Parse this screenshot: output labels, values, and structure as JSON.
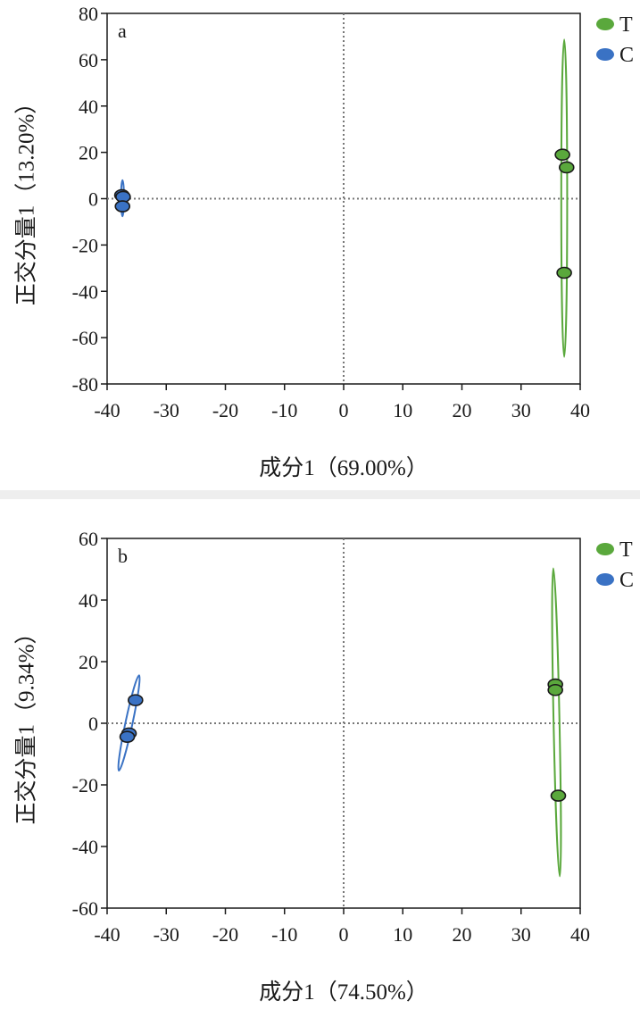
{
  "chart_data": [
    {
      "type": "scatter",
      "panel_label": "a",
      "xlabel": "成分1（69.00%）",
      "ylabel": "正交分量1（13.20%）",
      "xlim": [
        -40,
        40
      ],
      "ylim": [
        -80,
        80
      ],
      "xticks": [
        -40,
        -30,
        -20,
        -10,
        0,
        10,
        20,
        30,
        40
      ],
      "yticks": [
        -80,
        -60,
        -40,
        -20,
        0,
        20,
        40,
        60,
        80
      ],
      "reference_lines": {
        "x": 0,
        "y": 0,
        "style": "dotted"
      },
      "legend": {
        "placement": "right",
        "entries": [
          "T",
          "C"
        ]
      },
      "series": [
        {
          "name": "T",
          "color": "#5aa83c",
          "points": [
            {
              "x": 37,
              "y": 19
            },
            {
              "x": 37.7,
              "y": 13.5
            },
            {
              "x": 37.3,
              "y": -32
            }
          ],
          "ellipse": {
            "cx": 37.3,
            "cy": 0.2,
            "rx": 0.5,
            "ry": 68.5,
            "angle_deg": 0
          }
        },
        {
          "name": "C",
          "color": "#3a72c4",
          "points": [
            {
              "x": -37.5,
              "y": 1.5
            },
            {
              "x": -37.3,
              "y": 0.8
            },
            {
              "x": -37.4,
              "y": -3.3
            }
          ],
          "ellipse": {
            "cx": -37.4,
            "cy": 0.2,
            "rx": 0.25,
            "ry": 7.8,
            "angle_deg": 0
          }
        }
      ]
    },
    {
      "type": "scatter",
      "panel_label": "b",
      "xlabel": "成分1（74.50%）",
      "ylabel": "正交分量1（9.34%）",
      "xlim": [
        -40,
        40
      ],
      "ylim": [
        -60,
        60
      ],
      "xticks": [
        -40,
        -30,
        -20,
        -10,
        0,
        10,
        20,
        30,
        40
      ],
      "yticks": [
        -60,
        -40,
        -20,
        0,
        20,
        40,
        60
      ],
      "reference_lines": {
        "x": 0,
        "y": 0,
        "style": "dotted"
      },
      "legend": {
        "placement": "right",
        "entries": [
          "T",
          "C"
        ]
      },
      "series": [
        {
          "name": "T",
          "color": "#5aa83c",
          "points": [
            {
              "x": 35.8,
              "y": 12.6
            },
            {
              "x": 35.8,
              "y": 10.8
            },
            {
              "x": 36.3,
              "y": -23.5
            }
          ],
          "ellipse": {
            "cx": 36,
            "cy": 0.3,
            "rx": 0.5,
            "ry": 50,
            "angle_deg": -1.2
          }
        },
        {
          "name": "C",
          "color": "#3a72c4",
          "points": [
            {
              "x": -35.2,
              "y": 7.5
            },
            {
              "x": -36.3,
              "y": -3.3
            },
            {
              "x": -36.6,
              "y": -4.4
            }
          ],
          "ellipse": {
            "cx": -36.3,
            "cy": 0.1,
            "rx": 0.6,
            "ry": 15.8,
            "angle_deg": 12
          }
        }
      ]
    }
  ]
}
